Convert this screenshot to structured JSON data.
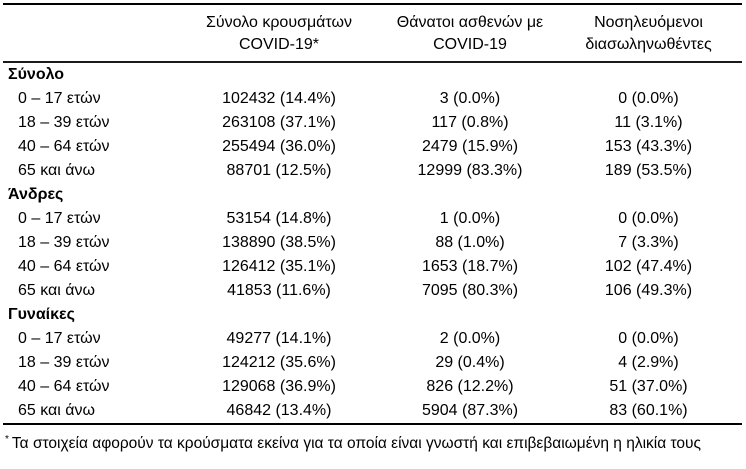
{
  "table": {
    "header": [
      {
        "line1": "",
        "line2": ""
      },
      {
        "line1": "Σύνολο κρουσμάτων",
        "line2": "COVID-19*"
      },
      {
        "line1": "Θάνατοι ασθενών με",
        "line2": "COVID-19"
      },
      {
        "line1": "Νοσηλευόμενοι",
        "line2": "διασωληνωθέντες"
      }
    ],
    "sections": [
      {
        "label": "Σύνολο",
        "rows": [
          {
            "label": "0 – 17 ετών",
            "values": [
              "102432 (14.4%)",
              "3 (0.0%)",
              "0 (0.0%)"
            ]
          },
          {
            "label": "18 – 39 ετών",
            "values": [
              "263108 (37.1%)",
              "117 (0.8%)",
              "11 (3.1%)"
            ]
          },
          {
            "label": "40 – 64 ετών",
            "values": [
              "255494 (36.0%)",
              "2479 (15.9%)",
              "153 (43.3%)"
            ]
          },
          {
            "label": "65 και άνω",
            "values": [
              "88701 (12.5%)",
              "12999 (83.3%)",
              "189 (53.5%)"
            ]
          }
        ]
      },
      {
        "label": "Άνδρες",
        "rows": [
          {
            "label": "0 – 17 ετών",
            "values": [
              "53154 (14.8%)",
              "1 (0.0%)",
              "0 (0.0%)"
            ]
          },
          {
            "label": "18 – 39 ετών",
            "values": [
              "138890 (38.5%)",
              "88 (1.0%)",
              "7 (3.3%)"
            ]
          },
          {
            "label": "40 – 64 ετών",
            "values": [
              "126412 (35.1%)",
              "1653 (18.7%)",
              "102 (47.4%)"
            ]
          },
          {
            "label": "65 και άνω",
            "values": [
              "41853 (11.6%)",
              "7095 (80.3%)",
              "106 (49.3%)"
            ]
          }
        ]
      },
      {
        "label": "Γυναίκες",
        "rows": [
          {
            "label": "0 – 17 ετών",
            "values": [
              "49277 (14.1%)",
              "2 (0.0%)",
              "0 (0.0%)"
            ]
          },
          {
            "label": "18 – 39 ετών",
            "values": [
              "124212 (35.6%)",
              "29 (0.4%)",
              "4 (2.9%)"
            ]
          },
          {
            "label": "40 – 64 ετών",
            "values": [
              "129068 (36.9%)",
              "826 (12.2%)",
              "51 (37.0%)"
            ]
          },
          {
            "label": "65 και άνω",
            "values": [
              "46842 (13.4%)",
              "5904 (87.3%)",
              "83 (60.1%)"
            ]
          }
        ]
      }
    ]
  },
  "footnote": {
    "marker": "*",
    "text": "Τα στοιχεία αφορούν τα κρούσματα εκείνα για τα οποία είναι γνωστή και επιβεβαιωμένη η ηλικία τους"
  },
  "colors": {
    "text": "#000000",
    "rule": "#000000",
    "background": "#ffffff"
  }
}
